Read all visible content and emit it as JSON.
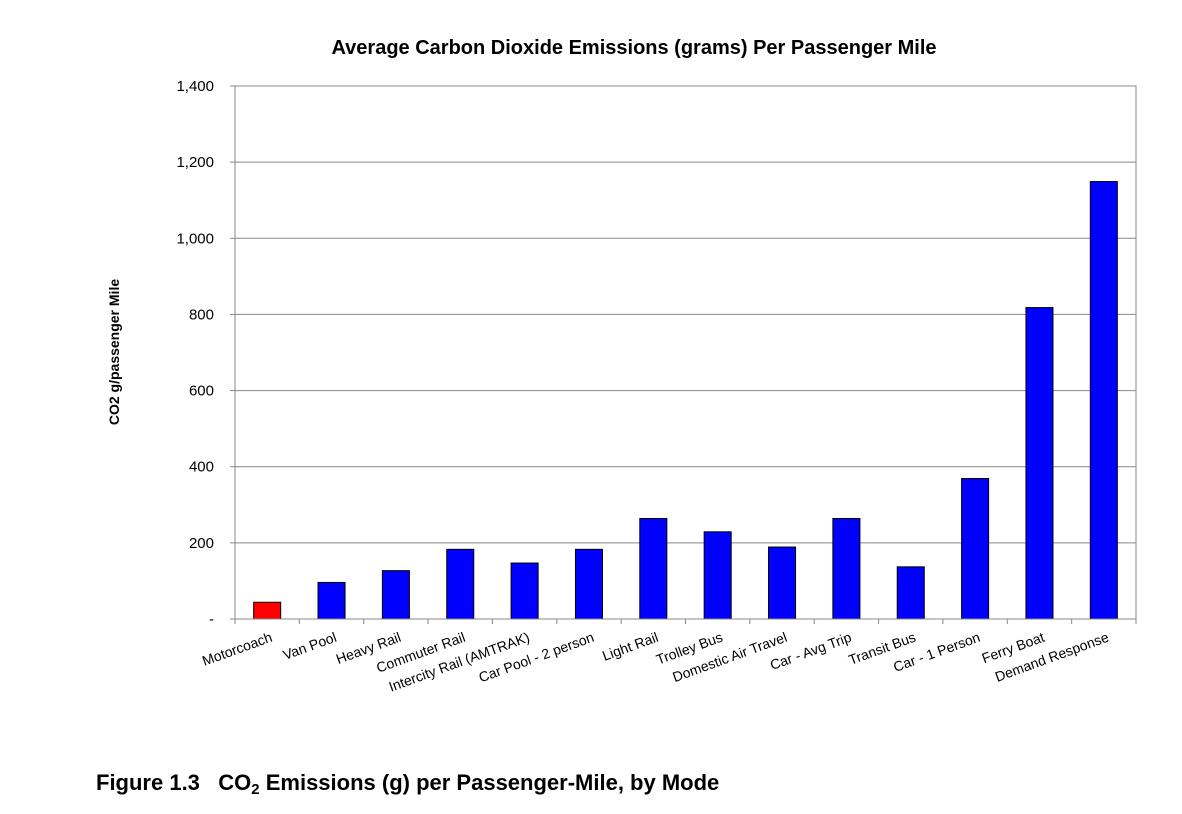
{
  "chart_data": {
    "type": "bar",
    "title": "Average Carbon Dioxide Emissions (grams) Per Passenger Mile",
    "ylabel": "CO2 g/passenger Mile",
    "xlabel": "",
    "ylim": [
      0,
      1400
    ],
    "yticks": [
      0,
      200,
      400,
      600,
      800,
      1000,
      1200,
      1400
    ],
    "ytick_labels": [
      "-",
      "200",
      "400",
      "600",
      "800",
      "1,000",
      "1,200",
      "1,400"
    ],
    "grid": true,
    "categories": [
      "Motorcoach",
      "Van Pool",
      "Heavy Rail",
      "Commuter Rail",
      "Intercity Rail (AMTRAK)",
      "Car Pool - 2 person",
      "Light Rail",
      "Trolley Bus",
      "Domestic Air Travel",
      "Car - Avg Trip",
      "Transit Bus",
      "Car - 1 Person",
      "Ferry Boat",
      "Demand Response"
    ],
    "values": [
      44,
      96,
      127,
      183,
      147,
      183,
      264,
      229,
      189,
      264,
      137,
      369,
      818,
      1149
    ],
    "colors": [
      "#FF0000",
      "#0000FF",
      "#0000FF",
      "#0000FF",
      "#0000FF",
      "#0000FF",
      "#0000FF",
      "#0000FF",
      "#0000FF",
      "#0000FF",
      "#0000FF",
      "#0000FF",
      "#0000FF",
      "#0000FF"
    ]
  },
  "caption": {
    "figure": "Figure 1.3",
    "prefix": "CO",
    "subscript": "2",
    "text": " Emissions (g) per Passenger-Mile, by Mode"
  }
}
